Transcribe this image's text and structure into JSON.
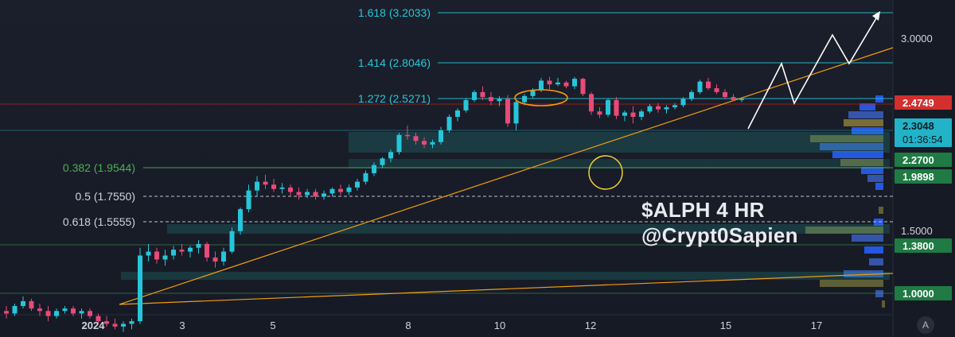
{
  "chart_data": {
    "type": "candlestick",
    "overlay_text": [
      "$ALPH 4 HR",
      "@Crypt0Sapien"
    ],
    "x_ticks": [
      "2024",
      "3",
      "5",
      "8",
      "10",
      "12",
      "15",
      "17"
    ],
    "y_ticks": [
      "3.0000",
      "1.5000"
    ],
    "fib_levels": [
      {
        "label": "1.618 (3.2033)",
        "value": 3.2033,
        "color": "#26c6da"
      },
      {
        "label": "1.414 (2.8046)",
        "value": 2.8046,
        "color": "#26c6da"
      },
      {
        "label": "1.272 (2.5271)",
        "value": 2.5271,
        "color": "#26c6da"
      },
      {
        "label": "0.382 (1.9544)",
        "value": 1.9544,
        "color": "#4caf50"
      },
      {
        "label": "0.5 (1.7550)",
        "value": 1.755,
        "color": "#d1d4dc"
      },
      {
        "label": "0.618 (1.5555)",
        "value": 1.5555,
        "color": "#d1d4dc"
      }
    ],
    "price_badges": [
      {
        "text": "2.4749",
        "value": 2.4749,
        "bg": "#d32f2f",
        "fg": "#ffffff"
      },
      {
        "text": "2.3048",
        "value": 2.3048,
        "bg": "#22b3c9",
        "fg": "#0e1a22",
        "sub": "01:36:54"
      },
      {
        "text": "2.2700",
        "value": 2.27,
        "bg": "#1f7a44",
        "fg": "#ffffff"
      },
      {
        "text": "1.9898",
        "value": 1.9898,
        "bg": "#1f7a44",
        "fg": "#ffffff"
      },
      {
        "text": "1.3800",
        "value": 1.38,
        "bg": "#1f7a44",
        "fg": "#ffffff"
      },
      {
        "text": "1.0000",
        "value": 1.0,
        "bg": "#1f7a44",
        "fg": "#ffffff"
      }
    ],
    "candles": [
      [
        0.93,
        0.95,
        0.9,
        0.92
      ],
      [
        0.92,
        0.96,
        0.91,
        0.95
      ],
      [
        0.95,
        0.99,
        0.94,
        0.97
      ],
      [
        0.97,
        0.98,
        0.93,
        0.94
      ],
      [
        0.94,
        0.96,
        0.91,
        0.93
      ],
      [
        0.93,
        0.95,
        0.89,
        0.91
      ],
      [
        0.91,
        0.94,
        0.9,
        0.93
      ],
      [
        0.93,
        0.95,
        0.92,
        0.94
      ],
      [
        0.94,
        0.95,
        0.91,
        0.92
      ],
      [
        0.92,
        0.94,
        0.9,
        0.93
      ],
      [
        0.93,
        0.94,
        0.9,
        0.91
      ],
      [
        0.91,
        0.92,
        0.88,
        0.89
      ],
      [
        0.89,
        0.91,
        0.87,
        0.88
      ],
      [
        0.88,
        0.9,
        0.86,
        0.87
      ],
      [
        0.87,
        0.89,
        0.85,
        0.88
      ],
      [
        0.88,
        0.9,
        0.86,
        0.89
      ],
      [
        0.89,
        1.22,
        0.88,
        1.18
      ],
      [
        1.18,
        1.24,
        1.15,
        1.2
      ],
      [
        1.2,
        1.22,
        1.14,
        1.16
      ],
      [
        1.16,
        1.21,
        1.13,
        1.18
      ],
      [
        1.18,
        1.23,
        1.16,
        1.21
      ],
      [
        1.21,
        1.24,
        1.18,
        1.2
      ],
      [
        1.2,
        1.23,
        1.17,
        1.22
      ],
      [
        1.22,
        1.26,
        1.19,
        1.24
      ],
      [
        1.24,
        1.25,
        1.15,
        1.17
      ],
      [
        1.17,
        1.2,
        1.12,
        1.15
      ],
      [
        1.15,
        1.22,
        1.13,
        1.2
      ],
      [
        1.2,
        1.33,
        1.19,
        1.31
      ],
      [
        1.31,
        1.45,
        1.29,
        1.44
      ],
      [
        1.44,
        1.6,
        1.42,
        1.56
      ],
      [
        1.56,
        1.66,
        1.52,
        1.62
      ],
      [
        1.62,
        1.67,
        1.57,
        1.6
      ],
      [
        1.6,
        1.64,
        1.55,
        1.57
      ],
      [
        1.57,
        1.61,
        1.54,
        1.58
      ],
      [
        1.58,
        1.6,
        1.52,
        1.55
      ],
      [
        1.55,
        1.58,
        1.5,
        1.53
      ],
      [
        1.53,
        1.57,
        1.51,
        1.55
      ],
      [
        1.55,
        1.57,
        1.5,
        1.52
      ],
      [
        1.52,
        1.56,
        1.5,
        1.54
      ],
      [
        1.54,
        1.58,
        1.52,
        1.57
      ],
      [
        1.57,
        1.6,
        1.53,
        1.55
      ],
      [
        1.55,
        1.6,
        1.53,
        1.58
      ],
      [
        1.58,
        1.64,
        1.56,
        1.62
      ],
      [
        1.62,
        1.7,
        1.6,
        1.68
      ],
      [
        1.68,
        1.76,
        1.66,
        1.74
      ],
      [
        1.74,
        1.8,
        1.72,
        1.79
      ],
      [
        1.79,
        1.86,
        1.76,
        1.84
      ],
      [
        1.84,
        2.0,
        1.82,
        1.98
      ],
      [
        1.98,
        2.06,
        1.94,
        1.97
      ],
      [
        1.97,
        2.0,
        1.9,
        1.93
      ],
      [
        1.93,
        1.96,
        1.87,
        1.9
      ],
      [
        1.9,
        1.94,
        1.87,
        1.92
      ],
      [
        1.92,
        2.05,
        1.9,
        2.02
      ],
      [
        2.02,
        2.16,
        2.0,
        2.14
      ],
      [
        2.14,
        2.22,
        2.1,
        2.2
      ],
      [
        2.2,
        2.32,
        2.18,
        2.3
      ],
      [
        2.3,
        2.4,
        2.28,
        2.38
      ],
      [
        2.38,
        2.44,
        2.3,
        2.33
      ],
      [
        2.33,
        2.38,
        2.25,
        2.29
      ],
      [
        2.29,
        2.34,
        2.24,
        2.31
      ],
      [
        2.31,
        2.35,
        2.05,
        2.08
      ],
      [
        2.08,
        2.3,
        2.02,
        2.28
      ],
      [
        2.28,
        2.36,
        2.25,
        2.34
      ],
      [
        2.34,
        2.42,
        2.32,
        2.4
      ],
      [
        2.4,
        2.53,
        2.38,
        2.5
      ],
      [
        2.5,
        2.54,
        2.41,
        2.46
      ],
      [
        2.46,
        2.53,
        2.44,
        2.48
      ],
      [
        2.48,
        2.5,
        2.42,
        2.44
      ],
      [
        2.44,
        2.54,
        2.41,
        2.52
      ],
      [
        2.52,
        2.53,
        2.34,
        2.36
      ],
      [
        2.36,
        2.38,
        2.16,
        2.19
      ],
      [
        2.19,
        2.23,
        2.13,
        2.16
      ],
      [
        2.16,
        2.32,
        2.14,
        2.3
      ],
      [
        2.3,
        2.33,
        2.12,
        2.15
      ],
      [
        2.15,
        2.2,
        2.1,
        2.18
      ],
      [
        2.18,
        2.24,
        2.08,
        2.14
      ],
      [
        2.14,
        2.21,
        2.11,
        2.19
      ],
      [
        2.19,
        2.26,
        2.17,
        2.24
      ],
      [
        2.24,
        2.27,
        2.18,
        2.21
      ],
      [
        2.21,
        2.25,
        2.17,
        2.23
      ],
      [
        2.23,
        2.27,
        2.21,
        2.25
      ],
      [
        2.25,
        2.33,
        2.23,
        2.31
      ],
      [
        2.31,
        2.4,
        2.29,
        2.38
      ],
      [
        2.38,
        2.51,
        2.36,
        2.49
      ],
      [
        2.49,
        2.53,
        2.4,
        2.42
      ],
      [
        2.42,
        2.46,
        2.36,
        2.38
      ],
      [
        2.38,
        2.41,
        2.31,
        2.33
      ],
      [
        2.33,
        2.36,
        2.29,
        2.3
      ],
      [
        2.3,
        2.32,
        2.28,
        2.31
      ]
    ]
  },
  "footer": {
    "logo": "A"
  }
}
